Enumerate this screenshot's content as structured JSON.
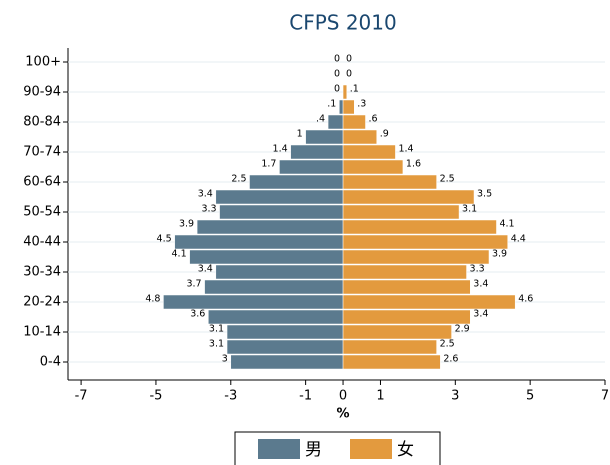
{
  "chart_data": {
    "type": "pyramid",
    "title": "CFPS 2010",
    "x_label": "%",
    "categories": [
      "0-4",
      null,
      "10-14",
      null,
      "20-24",
      null,
      "30-34",
      null,
      "40-44",
      null,
      "50-54",
      null,
      "60-64",
      null,
      "70-74",
      null,
      "80-84",
      null,
      "90-94",
      null,
      "100+"
    ],
    "series": [
      {
        "name": "男",
        "color": "#5b7a8e",
        "values": [
          -3,
          -3.1,
          -3.1,
          -3.6,
          -4.8,
          -3.7,
          -3.4,
          -4.1,
          -4.5,
          -3.9,
          -3.3,
          -3.4,
          -2.5,
          -1.7,
          -1.4,
          -1,
          -0.4,
          -0.1,
          0,
          0,
          0
        ],
        "value_labels": [
          "3",
          "3.1",
          "3.1",
          "3.6",
          "4.8",
          "3.7",
          "3.4",
          "4.1",
          "4.5",
          "3.9",
          "3.3",
          "3.4",
          "2.5",
          "1.7",
          "1.4",
          "1",
          ".4",
          ".1",
          "0",
          "0",
          "0"
        ]
      },
      {
        "name": "女",
        "color": "#e39a3e",
        "values": [
          2.6,
          2.5,
          2.9,
          3.4,
          4.6,
          3.4,
          3.3,
          3.9,
          4.4,
          4.1,
          3.1,
          3.5,
          2.5,
          1.6,
          1.4,
          0.9,
          0.6,
          0.3,
          0.1,
          0,
          0
        ],
        "value_labels": [
          "2.6",
          "2.5",
          "2.9",
          "3.4",
          "4.6",
          "3.4",
          "3.3",
          "3.9",
          "4.4",
          "4.1",
          "3.1",
          "3.5",
          "2.5",
          "1.6",
          "1.4",
          ".9",
          ".6",
          ".3",
          ".1",
          "0",
          "0"
        ]
      }
    ],
    "xlim": [
      -7.35,
      7
    ],
    "xticks": [
      -7,
      -5,
      -3,
      -1,
      0,
      1,
      3,
      5,
      7
    ],
    "grid": true
  }
}
